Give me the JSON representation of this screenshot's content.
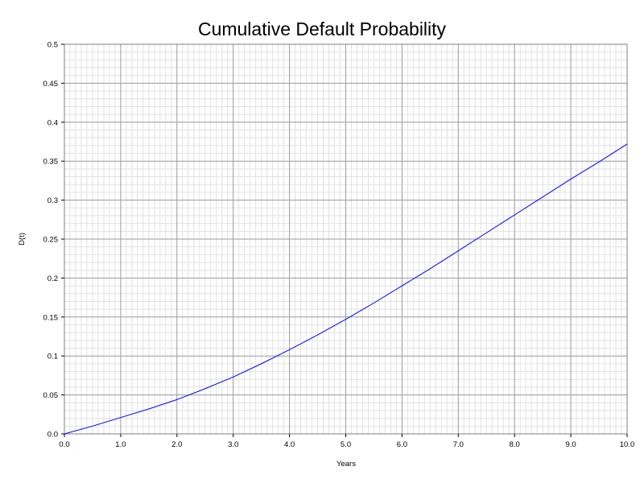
{
  "chart_data": {
    "type": "line",
    "title": "Cumulative Default Probability",
    "xlabel": "Years",
    "ylabel": "D(t)",
    "xlim": [
      0,
      10
    ],
    "ylim": [
      0,
      0.5
    ],
    "x_ticks": [
      "0.0",
      "1.0",
      "2.0",
      "3.0",
      "4.0",
      "5.0",
      "6.0",
      "7.0",
      "8.0",
      "9.0",
      "10.0"
    ],
    "y_ticks": [
      "0.0",
      "0.05",
      "0.1",
      "0.15",
      "0.2",
      "0.25",
      "0.3",
      "0.35",
      "0.4",
      "0.45",
      "0.5"
    ],
    "grid": true,
    "series": [
      {
        "color": "#0000ff",
        "x": [
          0,
          0.5,
          1,
          1.5,
          2,
          2.5,
          3,
          3.5,
          4,
          4.5,
          5,
          5.5,
          6,
          6.5,
          7,
          7.5,
          8,
          8.5,
          9,
          9.5,
          10
        ],
        "y": [
          0,
          0.01,
          0.021,
          0.032,
          0.044,
          0.058,
          0.073,
          0.09,
          0.108,
          0.127,
          0.147,
          0.168,
          0.19,
          0.212,
          0.235,
          0.258,
          0.281,
          0.304,
          0.327,
          0.349,
          0.372
        ]
      }
    ]
  }
}
